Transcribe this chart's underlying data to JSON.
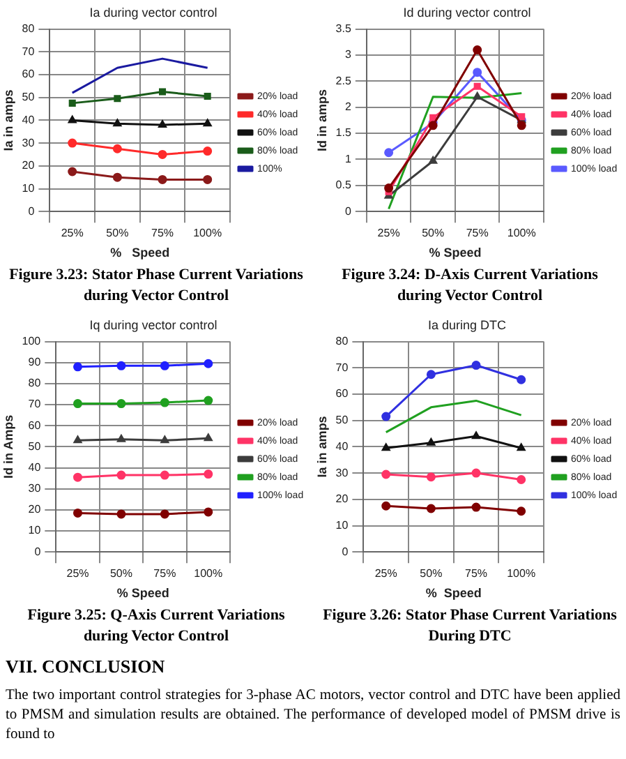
{
  "chart_data": [
    {
      "type": "line",
      "title": "Ia during vector control",
      "xlabel": "%   Speed",
      "ylabel": "Ia in amps",
      "categories": [
        "25%",
        "50%",
        "75%",
        "100%"
      ],
      "ylim": [
        0,
        80
      ],
      "yticks": [
        0,
        10,
        20,
        30,
        40,
        50,
        60,
        70,
        80
      ],
      "grid": true,
      "legend": "right",
      "marker": "circle",
      "annotations": [
        "Figure 3.23: Stator Phase Current Variations during Vector Control"
      ],
      "series": [
        {
          "name": "20% load",
          "color": "#8b1a1a",
          "values": [
            17.5,
            15,
            14,
            14
          ]
        },
        {
          "name": "40% load",
          "color": "#ff2a2a",
          "values": [
            30,
            27.5,
            25,
            26.5
          ]
        },
        {
          "name": "60% load",
          "color": "#111111",
          "marker": "triangle",
          "values": [
            40,
            38.5,
            38,
            38.5
          ]
        },
        {
          "name": "80% load",
          "color": "#1a5c1a",
          "marker": "square",
          "values": [
            47.5,
            49.5,
            52.5,
            50.5
          ]
        },
        {
          "name": "100%",
          "color": "#1a1aa0",
          "marker": "none",
          "values": [
            52,
            63,
            67,
            63
          ]
        }
      ]
    },
    {
      "type": "line",
      "title": "Id during vector control",
      "xlabel": "% Speed",
      "ylabel": "Id in amps",
      "categories": [
        "25%",
        "50%",
        "75%",
        "100%"
      ],
      "ylim": [
        0,
        3.5
      ],
      "yticks": [
        0,
        0.5,
        1,
        1.5,
        2,
        2.5,
        3,
        3.5
      ],
      "grid": true,
      "legend": "right",
      "marker": "circle",
      "annotations": [
        "Figure 3.24: D-Axis Current Variations during Vector Control"
      ],
      "series": [
        {
          "name": "20% load",
          "color": "#800000",
          "values": [
            0.45,
            1.65,
            3.1,
            1.65
          ]
        },
        {
          "name": "40% load",
          "color": "#ff3366",
          "marker": "square",
          "values": [
            0.38,
            1.8,
            2.4,
            1.82
          ]
        },
        {
          "name": "60% load",
          "color": "#3c3c3c",
          "marker": "triangle",
          "values": [
            0.3,
            0.97,
            2.2,
            1.75
          ]
        },
        {
          "name": "80% load",
          "color": "#20a020",
          "marker": "none",
          "values": [
            0.05,
            2.2,
            2.18,
            2.27
          ]
        },
        {
          "name": "100% load",
          "color": "#5a5aff",
          "values": [
            1.13,
            1.7,
            2.67,
            1.75
          ]
        }
      ]
    },
    {
      "type": "line",
      "title": "Iq during vector control",
      "xlabel": "% Speed",
      "ylabel": "Id in Amps",
      "categories": [
        "25%",
        "50%",
        "75%",
        "100%"
      ],
      "ylim": [
        0,
        100
      ],
      "yticks": [
        0,
        10,
        20,
        30,
        40,
        50,
        60,
        70,
        80,
        90,
        100
      ],
      "grid": true,
      "legend": "right",
      "marker": "circle",
      "annotations": [
        "Figure 3.25: Q-Axis Current Variations during Vector Control"
      ],
      "series": [
        {
          "name": "20% load",
          "color": "#800000",
          "values": [
            18.5,
            18,
            18,
            19
          ]
        },
        {
          "name": "40% load",
          "color": "#ff3366",
          "values": [
            35.5,
            36.5,
            36.5,
            37
          ]
        },
        {
          "name": "60% load",
          "color": "#3c3c3c",
          "marker": "triangle",
          "values": [
            53,
            53.5,
            53,
            54
          ]
        },
        {
          "name": "80% load",
          "color": "#20a020",
          "values": [
            70.5,
            70.5,
            71,
            72
          ]
        },
        {
          "name": "100% load",
          "color": "#2020ff",
          "values": [
            88,
            88.5,
            88.5,
            89.5
          ]
        }
      ]
    },
    {
      "type": "line",
      "title": "Ia during DTC",
      "xlabel": "%  Speed",
      "ylabel": "Ia in amps",
      "categories": [
        "25%",
        "50%",
        "75%",
        "100%"
      ],
      "ylim": [
        0,
        80
      ],
      "yticks": [
        0,
        10,
        20,
        30,
        40,
        50,
        60,
        70,
        80
      ],
      "grid": true,
      "legend": "right",
      "marker": "circle",
      "annotations": [
        "Figure 3.26: Stator Phase Current Variations During DTC",
        "VII. CONCLUSION",
        "The two important control strategies for 3-phase AC motors, vector control and DTC have been applied to PMSM and simulation results are obtained. The performance of developed model of PMSM drive is found to"
      ],
      "series": [
        {
          "name": "20% load",
          "color": "#800000",
          "values": [
            17.5,
            16.5,
            17,
            15.5
          ]
        },
        {
          "name": "40% load",
          "color": "#ff3366",
          "values": [
            29.5,
            28.5,
            30,
            27.5
          ]
        },
        {
          "name": "60% load",
          "color": "#111111",
          "marker": "triangle",
          "values": [
            39.5,
            41.5,
            44,
            39.5
          ]
        },
        {
          "name": "80% load",
          "color": "#20a020",
          "marker": "none",
          "values": [
            45.5,
            55,
            57.5,
            52
          ]
        },
        {
          "name": "100% load",
          "color": "#3030e0",
          "values": [
            51.5,
            67.5,
            71,
            65.5
          ]
        }
      ]
    }
  ]
}
